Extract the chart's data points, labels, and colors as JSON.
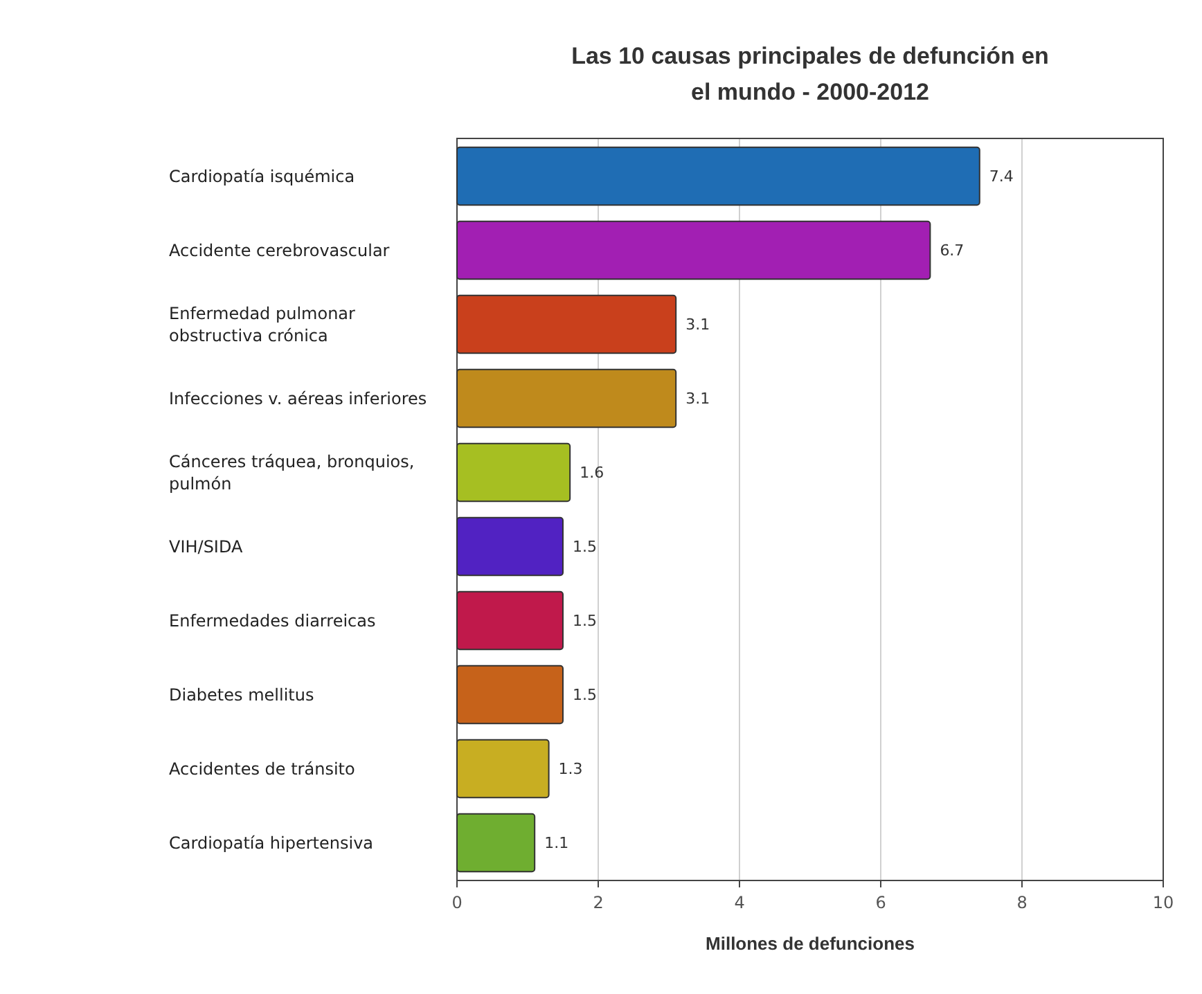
{
  "chart_data": {
    "type": "bar",
    "orientation": "horizontal",
    "title": "Las 10 causas principales de defunción en el mundo - 2000-2012",
    "xlabel": "Millones de defunciones",
    "categories": [
      "Cardiopatía isquémica",
      "Accidente cerebrovascular",
      "Enfermedad pulmonar obstructiva crónica",
      "Infecciones v. aéreas inferiores",
      "Cánceres tráquea, bronquios, pulmón",
      "VIH/SIDA",
      "Enfermedades diarreicas",
      "Diabetes mellitus",
      "Accidentes de tránsito",
      "Cardiopatía hipertensiva"
    ],
    "values": [
      7.4,
      6.7,
      3.1,
      3.1,
      1.6,
      1.5,
      1.5,
      1.5,
      1.3,
      1.1
    ],
    "colors": [
      "#1f6db4",
      "#a21fb3",
      "#c9401c",
      "#bf8a1c",
      "#a6bf22",
      "#5122c2",
      "#c0194b",
      "#c6621a",
      "#c8ae22",
      "#6fae30"
    ],
    "xlim": [
      0,
      10
    ],
    "xticks": [
      0,
      2,
      4,
      6,
      8,
      10
    ],
    "grid": "x",
    "data_labels": true
  }
}
